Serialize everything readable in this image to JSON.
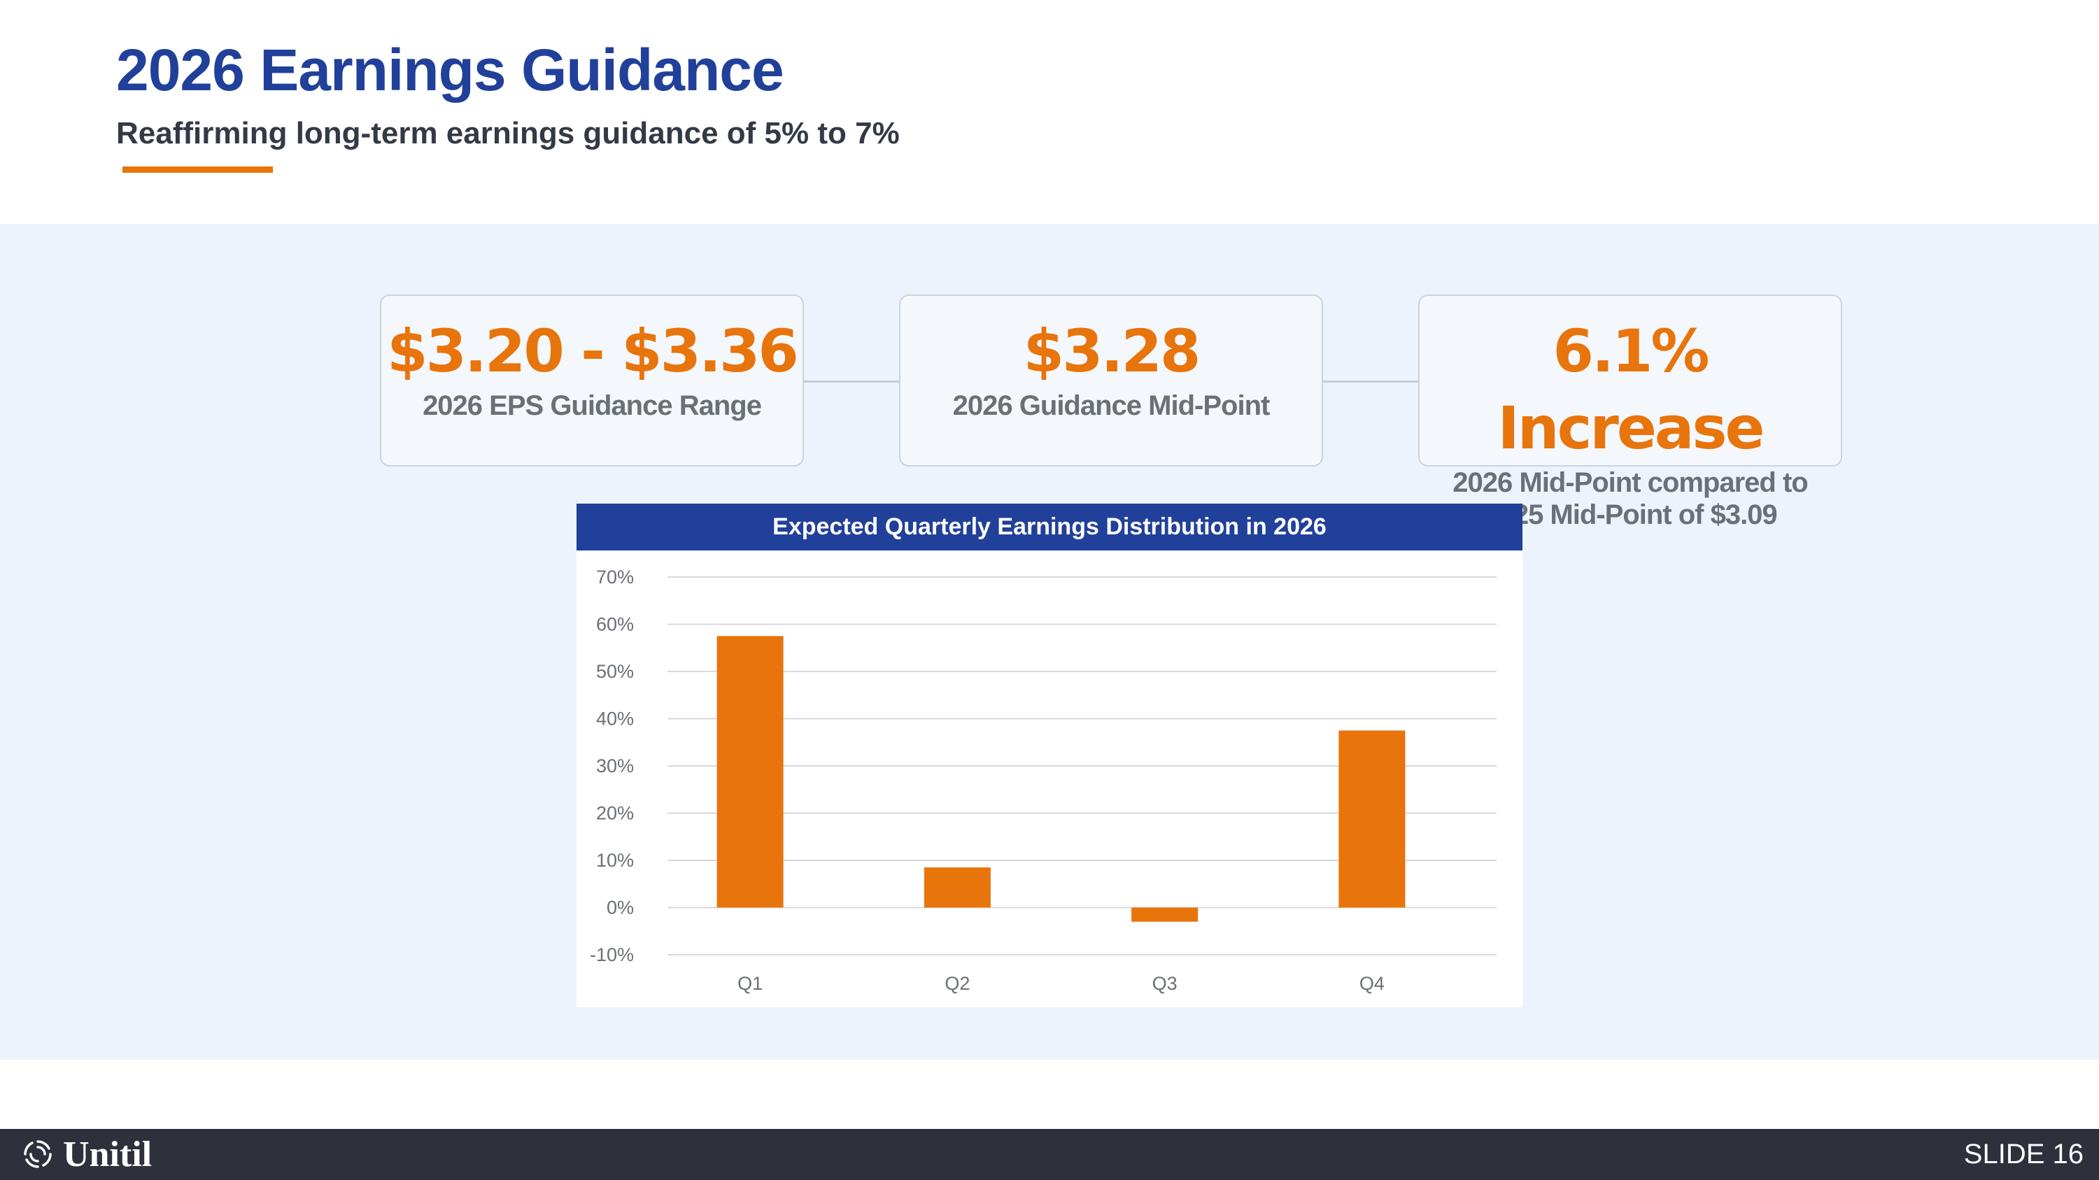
{
  "slide": {
    "title": "2026 Earnings Guidance",
    "subtitle": "Reaffirming long-term earnings guidance of 5% to 7%",
    "accent_color": "#e8740c",
    "brand_color": "#21409a"
  },
  "kpis": [
    {
      "value": "$3.20 - $3.36",
      "label": "2026 EPS Guidance Range"
    },
    {
      "value": "$3.28",
      "label": "2026 Guidance Mid-Point"
    },
    {
      "value": "6.1% Increase",
      "label": "2026 Mid-Point compared to 2025 Mid-Point of $3.09"
    }
  ],
  "chart_data": {
    "type": "bar",
    "title": "Expected Quarterly Earnings Distribution in 2026",
    "categories": [
      "Q1",
      "Q2",
      "Q3",
      "Q4"
    ],
    "values": [
      57.5,
      8.5,
      -3,
      37.5
    ],
    "unit": "%",
    "ylim": [
      -10,
      70
    ],
    "yticks": [
      70,
      60,
      50,
      40,
      30,
      20,
      10,
      0,
      -10
    ],
    "ytick_labels": [
      "70%",
      "60%",
      "50%",
      "40%",
      "30%",
      "20%",
      "10%",
      "0%",
      "-10%"
    ],
    "xlabel": "",
    "ylabel": "",
    "grid": true,
    "bar_color": "#e8740c"
  },
  "footer": {
    "logo_text": "Unitil",
    "logo_icon": "unitil-logo-icon",
    "slide_label": "SLIDE 16"
  }
}
